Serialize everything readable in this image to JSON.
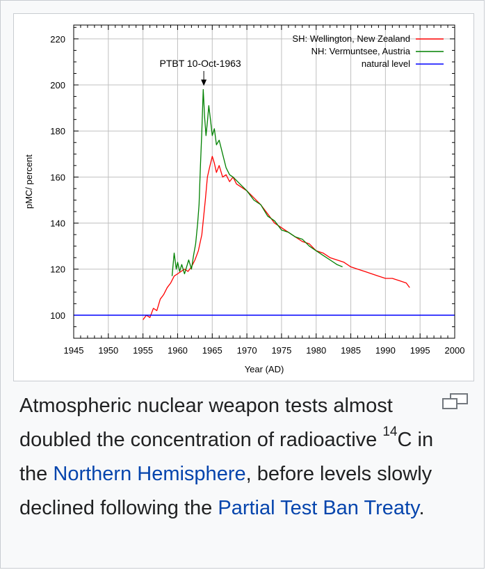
{
  "figure": {
    "caption": {
      "part1": "Atmospheric nuclear weapon tests almost doubled the concentration of radioactive ",
      "sup": "14",
      "part2": "C in the ",
      "link1": "Northern Hemisphere",
      "part3": ", before levels slowly declined following the ",
      "link2": "Partial Test Ban Treaty",
      "part4": "."
    },
    "magnify_icon": "enlarge-icon"
  },
  "chart_data": {
    "type": "line",
    "xlabel": "Year (AD)",
    "ylabel": "pMC/ percent",
    "xlim": [
      1945,
      2000
    ],
    "ylim": [
      90,
      226
    ],
    "xticks": [
      1945,
      1950,
      1955,
      1960,
      1965,
      1970,
      1975,
      1980,
      1985,
      1990,
      1995,
      2000
    ],
    "yticks": [
      100,
      120,
      140,
      160,
      180,
      200,
      220
    ],
    "grid": true,
    "legend_position": "top-right",
    "annotation": {
      "text": "PTBT 10-Oct-1963",
      "x": 1963.78,
      "y": 199
    },
    "colors": {
      "sh": "#ff0000",
      "nh": "#008000",
      "natural": "#0000ff",
      "grid": "#c0c0c0"
    },
    "series": [
      {
        "name": "SH: Wellington, New Zealand",
        "color": "#ff0000",
        "x": [
          1955.0,
          1955.5,
          1956.0,
          1956.5,
          1957.0,
          1957.5,
          1958.0,
          1958.5,
          1959.0,
          1959.5,
          1960.0,
          1960.5,
          1961.0,
          1961.5,
          1962.0,
          1962.5,
          1963.0,
          1963.5,
          1964.0,
          1964.3,
          1964.6,
          1965.0,
          1965.3,
          1965.6,
          1966.0,
          1966.5,
          1967.0,
          1967.5,
          1968.0,
          1968.5,
          1969.0,
          1970.0,
          1971.0,
          1972.0,
          1973.0,
          1974.0,
          1975.0,
          1976.0,
          1977.0,
          1978.0,
          1979.0,
          1980.0,
          1981.0,
          1982.0,
          1983.0,
          1984.0,
          1985.0,
          1986.0,
          1987.0,
          1988.0,
          1989.0,
          1990.0,
          1991.0,
          1992.0,
          1993.0,
          1993.5
        ],
        "values": [
          98,
          100,
          99,
          103,
          102,
          107,
          109,
          112,
          114,
          117,
          118,
          119,
          120,
          119,
          121,
          124,
          128,
          135,
          150,
          160,
          164,
          169,
          166,
          162,
          165,
          160,
          161,
          158,
          160,
          157,
          156,
          154,
          151,
          148,
          144,
          140,
          138,
          136,
          134,
          132,
          131,
          128,
          127,
          125,
          124,
          123,
          121,
          120,
          119,
          118,
          117,
          116,
          116,
          115,
          114,
          112
        ]
      },
      {
        "name": "NH: Vermuntsee, Austria",
        "color": "#008000",
        "x": [
          1959.2,
          1959.5,
          1959.8,
          1960.0,
          1960.3,
          1960.6,
          1961.0,
          1961.3,
          1961.6,
          1962.0,
          1962.3,
          1962.6,
          1962.9,
          1963.1,
          1963.3,
          1963.5,
          1963.7,
          1963.9,
          1964.1,
          1964.3,
          1964.5,
          1964.7,
          1965.0,
          1965.3,
          1965.6,
          1966.0,
          1966.5,
          1967.0,
          1967.5,
          1968.0,
          1969.0,
          1970.0,
          1971.0,
          1972.0,
          1973.0,
          1974.0,
          1975.0,
          1976.0,
          1977.0,
          1978.0,
          1979.0,
          1980.0,
          1981.0,
          1982.0,
          1983.0,
          1983.8
        ],
        "values": [
          117,
          127,
          120,
          123,
          119,
          122,
          118,
          121,
          124,
          120,
          126,
          131,
          140,
          148,
          165,
          180,
          198,
          186,
          178,
          184,
          191,
          186,
          178,
          181,
          174,
          176,
          170,
          164,
          161,
          160,
          157,
          154,
          150,
          148,
          143,
          141,
          137,
          136,
          134,
          133,
          130,
          128,
          126,
          124,
          122,
          121
        ]
      },
      {
        "name": "natural level",
        "color": "#0000ff",
        "x": [
          1945,
          2000
        ],
        "values": [
          100,
          100
        ]
      }
    ]
  }
}
